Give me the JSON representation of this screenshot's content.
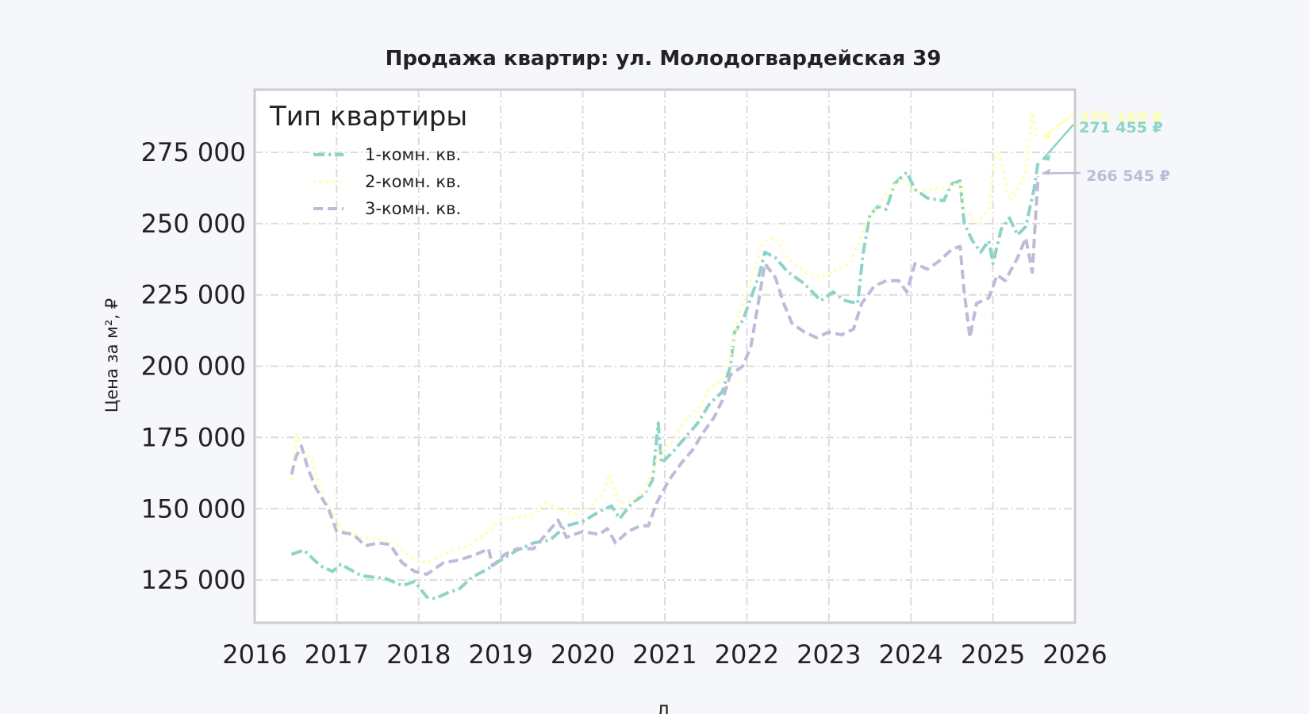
{
  "chart_data": {
    "type": "line",
    "title": "Продажа квартир: ул. Молодогвардейская 39",
    "ylabel": "Цена за м², ₽",
    "xlabel": "Д",
    "xlim": [
      2016.0,
      2026.0
    ],
    "ylim": [
      110000,
      297000
    ],
    "x_ticks": [
      2016,
      2017,
      2018,
      2019,
      2020,
      2021,
      2022,
      2023,
      2024,
      2025,
      2026
    ],
    "x_tick_labels": [
      "2016",
      "2017",
      "2018",
      "2019",
      "2020",
      "2021",
      "2022",
      "2023",
      "2024",
      "2025",
      "2026"
    ],
    "y_ticks": [
      125000,
      150000,
      175000,
      200000,
      225000,
      250000,
      275000
    ],
    "y_tick_labels": [
      "125 000",
      "150 000",
      "175 000",
      "200 000",
      "225 000",
      "250 000",
      "275 000"
    ],
    "grid": true,
    "legend": {
      "title": "Тип квартиры",
      "position": "top-left"
    },
    "series": [
      {
        "name": "1-комн. кв.",
        "color": "#8dd3c7",
        "dash": "dashdot",
        "end_label": "271 455 ₽",
        "points": [
          [
            2016.45,
            134000
          ],
          [
            2016.6,
            135500
          ],
          [
            2016.8,
            130000
          ],
          [
            2016.95,
            128000
          ],
          [
            2017.05,
            130500
          ],
          [
            2017.3,
            126500
          ],
          [
            2017.6,
            125500
          ],
          [
            2017.8,
            123000
          ],
          [
            2017.95,
            124500
          ],
          [
            2018.1,
            119000
          ],
          [
            2018.2,
            118500
          ],
          [
            2018.35,
            120500
          ],
          [
            2018.5,
            122000
          ],
          [
            2018.65,
            126000
          ],
          [
            2018.85,
            129000
          ],
          [
            2019.0,
            132000
          ],
          [
            2019.2,
            135500
          ],
          [
            2019.4,
            138000
          ],
          [
            2019.6,
            139000
          ],
          [
            2019.8,
            144000
          ],
          [
            2020.0,
            145500
          ],
          [
            2020.2,
            149000
          ],
          [
            2020.35,
            151000
          ],
          [
            2020.45,
            146500
          ],
          [
            2020.6,
            152000
          ],
          [
            2020.75,
            155000
          ],
          [
            2020.85,
            160000
          ],
          [
            2020.92,
            180000
          ],
          [
            2020.96,
            166000
          ],
          [
            2021.1,
            170000
          ],
          [
            2021.25,
            175000
          ],
          [
            2021.4,
            180000
          ],
          [
            2021.55,
            187000
          ],
          [
            2021.7,
            191000
          ],
          [
            2021.8,
            200000
          ],
          [
            2021.85,
            212000
          ],
          [
            2021.95,
            216000
          ],
          [
            2022.05,
            224000
          ],
          [
            2022.15,
            232000
          ],
          [
            2022.22,
            240000
          ],
          [
            2022.35,
            238000
          ],
          [
            2022.5,
            233000
          ],
          [
            2022.7,
            229000
          ],
          [
            2022.9,
            223000
          ],
          [
            2023.05,
            226000
          ],
          [
            2023.2,
            223000
          ],
          [
            2023.35,
            222000
          ],
          [
            2023.42,
            240000
          ],
          [
            2023.5,
            253000
          ],
          [
            2023.6,
            256000
          ],
          [
            2023.7,
            255000
          ],
          [
            2023.8,
            264000
          ],
          [
            2023.95,
            268000
          ],
          [
            2024.05,
            262000
          ],
          [
            2024.2,
            259000
          ],
          [
            2024.4,
            258000
          ],
          [
            2024.5,
            264000
          ],
          [
            2024.6,
            265000
          ],
          [
            2024.65,
            250000
          ],
          [
            2024.75,
            244000
          ],
          [
            2024.85,
            240000
          ],
          [
            2024.95,
            244000
          ],
          [
            2025.0,
            236000
          ],
          [
            2025.1,
            248000
          ],
          [
            2025.2,
            252000
          ],
          [
            2025.3,
            246000
          ],
          [
            2025.4,
            249000
          ],
          [
            2025.5,
            262000
          ],
          [
            2025.55,
            271455
          ]
        ]
      },
      {
        "name": "2-комн. кв.",
        "color": "#ffffb3",
        "dash": "dotted",
        "end_label": "279 169 ₽",
        "points": [
          [
            2016.45,
            160000
          ],
          [
            2016.52,
            176000
          ],
          [
            2016.6,
            170000
          ],
          [
            2016.7,
            167000
          ],
          [
            2016.8,
            157000
          ],
          [
            2016.95,
            148000
          ],
          [
            2017.05,
            143000
          ],
          [
            2017.3,
            140000
          ],
          [
            2017.6,
            139000
          ],
          [
            2017.75,
            137000
          ],
          [
            2017.9,
            133000
          ],
          [
            2018.1,
            131000
          ],
          [
            2018.3,
            134000
          ],
          [
            2018.6,
            137000
          ],
          [
            2018.8,
            141000
          ],
          [
            2019.0,
            146000
          ],
          [
            2019.2,
            147000
          ],
          [
            2019.4,
            148000
          ],
          [
            2019.55,
            152000
          ],
          [
            2019.7,
            150000
          ],
          [
            2019.9,
            148000
          ],
          [
            2020.1,
            151000
          ],
          [
            2020.25,
            155000
          ],
          [
            2020.32,
            162000
          ],
          [
            2020.45,
            152000
          ],
          [
            2020.6,
            153000
          ],
          [
            2020.75,
            156000
          ],
          [
            2020.85,
            164000
          ],
          [
            2020.95,
            170000
          ],
          [
            2021.1,
            174000
          ],
          [
            2021.25,
            181000
          ],
          [
            2021.4,
            185000
          ],
          [
            2021.55,
            192000
          ],
          [
            2021.7,
            195000
          ],
          [
            2021.8,
            204000
          ],
          [
            2021.9,
            218000
          ],
          [
            2022.0,
            226000
          ],
          [
            2022.1,
            235000
          ],
          [
            2022.2,
            244000
          ],
          [
            2022.35,
            245000
          ],
          [
            2022.5,
            238000
          ],
          [
            2022.7,
            233000
          ],
          [
            2022.9,
            231000
          ],
          [
            2023.1,
            234000
          ],
          [
            2023.25,
            236000
          ],
          [
            2023.35,
            242000
          ],
          [
            2023.45,
            250000
          ],
          [
            2023.6,
            256000
          ],
          [
            2023.75,
            262000
          ],
          [
            2023.9,
            266000
          ],
          [
            2024.05,
            261000
          ],
          [
            2024.25,
            262000
          ],
          [
            2024.45,
            263000
          ],
          [
            2024.6,
            264000
          ],
          [
            2024.65,
            255000
          ],
          [
            2024.8,
            250000
          ],
          [
            2024.95,
            255000
          ],
          [
            2025.0,
            268000
          ],
          [
            2025.05,
            276000
          ],
          [
            2025.1,
            272000
          ],
          [
            2025.2,
            258000
          ],
          [
            2025.3,
            262000
          ],
          [
            2025.4,
            268000
          ],
          [
            2025.48,
            289000
          ],
          [
            2025.55,
            279169
          ]
        ]
      },
      {
        "name": "3-комн. кв.",
        "color": "#bebada",
        "dash": "dashed",
        "end_label": "266 545 ₽",
        "points": [
          [
            2016.45,
            162000
          ],
          [
            2016.5,
            168000
          ],
          [
            2016.57,
            172000
          ],
          [
            2016.65,
            164000
          ],
          [
            2016.75,
            157000
          ],
          [
            2016.9,
            150000
          ],
          [
            2017.0,
            142000
          ],
          [
            2017.2,
            141000
          ],
          [
            2017.35,
            137000
          ],
          [
            2017.5,
            138000
          ],
          [
            2017.65,
            137500
          ],
          [
            2017.8,
            131000
          ],
          [
            2017.95,
            128000
          ],
          [
            2018.1,
            127000
          ],
          [
            2018.3,
            131000
          ],
          [
            2018.5,
            132000
          ],
          [
            2018.7,
            134000
          ],
          [
            2018.85,
            136000
          ],
          [
            2018.9,
            130000
          ],
          [
            2019.05,
            134000
          ],
          [
            2019.2,
            136000
          ],
          [
            2019.4,
            136000
          ],
          [
            2019.55,
            141000
          ],
          [
            2019.7,
            146000
          ],
          [
            2019.8,
            140000
          ],
          [
            2020.0,
            142000
          ],
          [
            2020.2,
            141000
          ],
          [
            2020.3,
            143000
          ],
          [
            2020.4,
            138000
          ],
          [
            2020.55,
            142000
          ],
          [
            2020.7,
            144000
          ],
          [
            2020.8,
            144000
          ],
          [
            2020.9,
            152000
          ],
          [
            2021.05,
            160000
          ],
          [
            2021.2,
            166000
          ],
          [
            2021.35,
            171000
          ],
          [
            2021.45,
            176000
          ],
          [
            2021.6,
            182000
          ],
          [
            2021.7,
            188000
          ],
          [
            2021.8,
            197000
          ],
          [
            2021.95,
            200000
          ],
          [
            2022.05,
            207000
          ],
          [
            2022.15,
            224000
          ],
          [
            2022.22,
            236000
          ],
          [
            2022.35,
            231000
          ],
          [
            2022.45,
            222000
          ],
          [
            2022.55,
            215000
          ],
          [
            2022.7,
            212000
          ],
          [
            2022.85,
            210000
          ],
          [
            2023.0,
            212000
          ],
          [
            2023.15,
            211000
          ],
          [
            2023.3,
            213000
          ],
          [
            2023.4,
            222000
          ],
          [
            2023.55,
            228000
          ],
          [
            2023.7,
            230000
          ],
          [
            2023.85,
            230000
          ],
          [
            2023.95,
            226000
          ],
          [
            2024.05,
            236000
          ],
          [
            2024.2,
            234000
          ],
          [
            2024.35,
            237000
          ],
          [
            2024.5,
            241000
          ],
          [
            2024.6,
            242000
          ],
          [
            2024.65,
            226000
          ],
          [
            2024.72,
            210000
          ],
          [
            2024.8,
            222000
          ],
          [
            2024.95,
            224000
          ],
          [
            2025.05,
            232000
          ],
          [
            2025.15,
            230000
          ],
          [
            2025.3,
            238000
          ],
          [
            2025.4,
            245000
          ],
          [
            2025.48,
            233000
          ],
          [
            2025.55,
            266545
          ]
        ]
      }
    ]
  }
}
